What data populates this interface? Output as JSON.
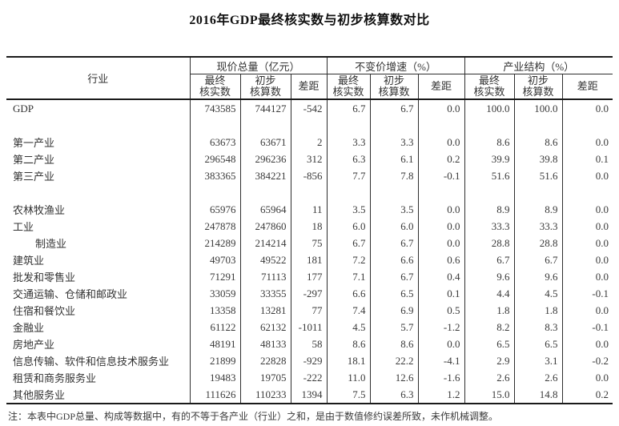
{
  "chart_data": {
    "type": "table",
    "title": "2016年GDP最终核实数与初步核算数对比",
    "row_header": "行业",
    "column_groups": [
      "现价总量（亿元）",
      "不变价增速（%）",
      "产业结构（%）"
    ],
    "subcolumns": [
      "最终\n核实数",
      "初步\n核算数",
      "差距"
    ],
    "rows": [
      {
        "label": "GDP",
        "values": [
          "743585",
          "744127",
          "-542",
          "6.7",
          "6.7",
          "0.0",
          "100.0",
          "100.0",
          "0.0"
        ]
      },
      {
        "blank": true
      },
      {
        "label": "第一产业",
        "values": [
          "63673",
          "63671",
          "2",
          "3.3",
          "3.3",
          "0.0",
          "8.6",
          "8.6",
          "0.0"
        ]
      },
      {
        "label": "第二产业",
        "values": [
          "296548",
          "296236",
          "312",
          "6.3",
          "6.1",
          "0.2",
          "39.9",
          "39.8",
          "0.1"
        ]
      },
      {
        "label": "第三产业",
        "values": [
          "383365",
          "384221",
          "-856",
          "7.7",
          "7.8",
          "-0.1",
          "51.6",
          "51.6",
          "0.0"
        ]
      },
      {
        "blank": true
      },
      {
        "label": "农林牧渔业",
        "values": [
          "65976",
          "65964",
          "11",
          "3.5",
          "3.5",
          "0.0",
          "8.9",
          "8.9",
          "0.0"
        ]
      },
      {
        "label": "工业",
        "values": [
          "247878",
          "247860",
          "18",
          "6.0",
          "6.0",
          "0.0",
          "33.3",
          "33.3",
          "0.0"
        ]
      },
      {
        "label": "制造业",
        "indent": true,
        "values": [
          "214289",
          "214214",
          "75",
          "6.7",
          "6.7",
          "0.0",
          "28.8",
          "28.8",
          "0.0"
        ]
      },
      {
        "label": "建筑业",
        "values": [
          "49703",
          "49522",
          "181",
          "7.2",
          "6.6",
          "0.6",
          "6.7",
          "6.7",
          "0.0"
        ]
      },
      {
        "label": "批发和零售业",
        "values": [
          "71291",
          "71113",
          "177",
          "7.1",
          "6.7",
          "0.4",
          "9.6",
          "9.6",
          "0.0"
        ]
      },
      {
        "label": "交通运输、仓储和邮政业",
        "values": [
          "33059",
          "33355",
          "-297",
          "6.6",
          "6.5",
          "0.1",
          "4.4",
          "4.5",
          "-0.1"
        ]
      },
      {
        "label": "住宿和餐饮业",
        "values": [
          "13358",
          "13281",
          "77",
          "7.4",
          "6.9",
          "0.5",
          "1.8",
          "1.8",
          "0.0"
        ]
      },
      {
        "label": "金融业",
        "values": [
          "61122",
          "62132",
          "-1011",
          "4.5",
          "5.7",
          "-1.2",
          "8.2",
          "8.3",
          "-0.1"
        ]
      },
      {
        "label": "房地产业",
        "values": [
          "48191",
          "48133",
          "58",
          "8.6",
          "8.6",
          "0.0",
          "6.5",
          "6.5",
          "0.0"
        ]
      },
      {
        "label": "信息传输、软件和信息技术服务业",
        "values": [
          "21899",
          "22828",
          "-929",
          "18.1",
          "22.2",
          "-4.1",
          "2.9",
          "3.1",
          "-0.2"
        ]
      },
      {
        "label": "租赁和商务服务业",
        "values": [
          "19483",
          "19705",
          "-222",
          "11.0",
          "12.6",
          "-1.6",
          "2.6",
          "2.6",
          "0.0"
        ]
      },
      {
        "label": "其他服务业",
        "values": [
          "111626",
          "110233",
          "1394",
          "7.5",
          "6.3",
          "1.2",
          "15.0",
          "14.8",
          "0.2"
        ]
      }
    ],
    "note": "注：本表中GDP总量、构成等数据中，有的不等于各产业（行业）之和，是由于数值修约误差所致，未作机械调整。"
  },
  "layout": {
    "line_color_heavy": "#1a1a1a",
    "line_color_light": "#2e2e2e",
    "text_color": "#333333"
  }
}
